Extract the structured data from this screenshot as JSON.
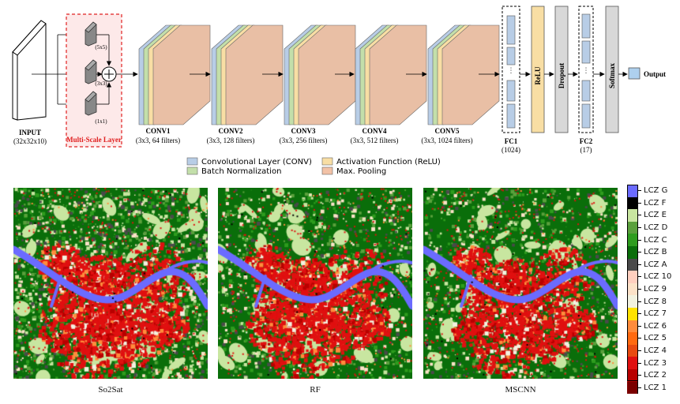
{
  "diagram": {
    "input": {
      "title": "INPUT",
      "shape": "(32x32x10)"
    },
    "multiscale": {
      "title": "Multi-Scale Layer",
      "k5": "(5x5)",
      "k3": "(3x3)",
      "k1": "(1x1)"
    },
    "convs": [
      {
        "title": "CONV1",
        "sub": "(3x3, 64 filters)"
      },
      {
        "title": "CONV2",
        "sub": "(3x3, 128 filters)"
      },
      {
        "title": "CONV3",
        "sub": "(3x3, 256 filters)"
      },
      {
        "title": "CONV4",
        "sub": "(3x3, 512 filters)"
      },
      {
        "title": "CONV5",
        "sub": "(3x3, 1024 filters)"
      }
    ],
    "fc1": {
      "title": "FC1",
      "sub": "(1024)"
    },
    "relu": "ReLU",
    "dropout": "Dropout",
    "fc2": {
      "title": "FC2",
      "sub": "(17)"
    },
    "softmax": "Softmax",
    "output": "Output",
    "legend": [
      {
        "label": "Convolutional Layer (CONV)",
        "color": "#b8cde6"
      },
      {
        "label": "Activation Function (ReLU)",
        "color": "#f8dea4"
      },
      {
        "label": "Batch Normalization",
        "color": "#c3dfaa"
      },
      {
        "label": "Max. Pooling",
        "color": "#f2c2a6"
      }
    ],
    "colors": {
      "conv": "#b8cde6",
      "bn": "#c3dfaa",
      "relu": "#f8dea4",
      "pool": "#e9bfa5",
      "red": "#e02020",
      "gray": "#d8d8d8",
      "output": "#aed0ee"
    }
  },
  "maps": [
    {
      "title": "So2Sat"
    },
    {
      "title": "RF"
    },
    {
      "title": "MSCNN"
    }
  ],
  "lcz_legend": [
    {
      "label": "LCZ G",
      "color": "#6b6bff"
    },
    {
      "label": "LCZ F",
      "color": "#000000"
    },
    {
      "label": "LCZ E",
      "color": "#c8e6a0"
    },
    {
      "label": "LCZ D",
      "color": "#5aa03c"
    },
    {
      "label": "LCZ C",
      "color": "#2e9c1e"
    },
    {
      "label": "LCZ B",
      "color": "#0a6e0a"
    },
    {
      "label": "LCZ A",
      "color": "#4a4a4a"
    },
    {
      "label": "LCZ 10",
      "color": "#ffcfbf"
    },
    {
      "label": "LCZ 9",
      "color": "#fce2c8"
    },
    {
      "label": "LCZ 8",
      "color": "#f2f2e0"
    },
    {
      "label": "LCZ 7",
      "color": "#ffe200"
    },
    {
      "label": "LCZ 6",
      "color": "#ff8c3c"
    },
    {
      "label": "LCZ 5",
      "color": "#ff6a10"
    },
    {
      "label": "LCZ 4",
      "color": "#e84a10"
    },
    {
      "label": "LCZ 3",
      "color": "#e01010"
    },
    {
      "label": "LCZ 2",
      "color": "#b80000"
    },
    {
      "label": "LCZ 1",
      "color": "#7a0000"
    }
  ]
}
